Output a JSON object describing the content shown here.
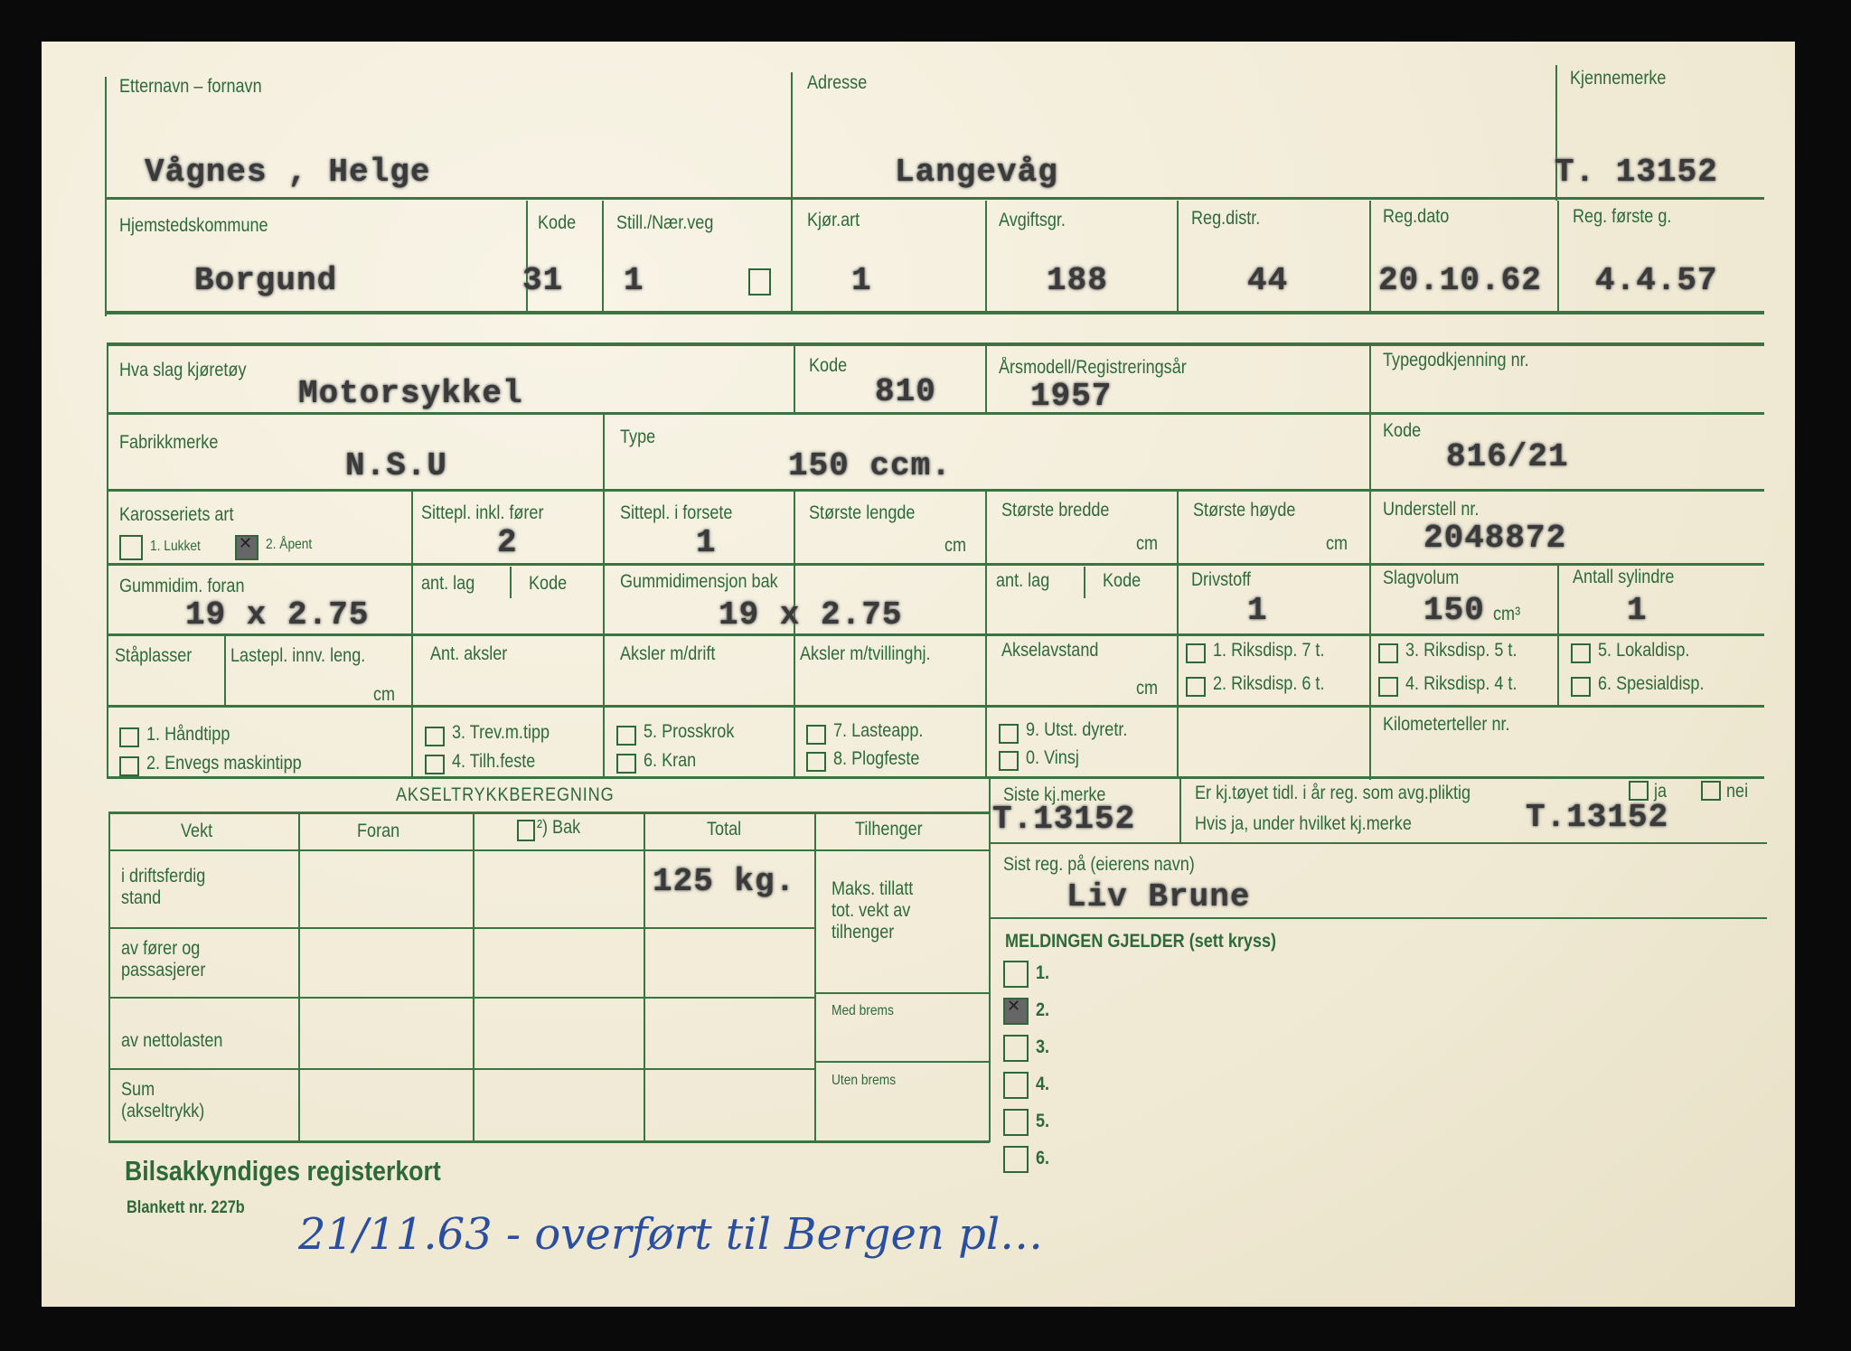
{
  "owner": {
    "name_label": "Etternavn – fornavn",
    "name": "Vågnes , Helge",
    "address_label": "Adresse",
    "address": "Langevåg",
    "plate_label": "Kjennemerke",
    "plate": "T. 13152"
  },
  "registration": {
    "municipality_label": "Hjemstedskommune",
    "municipality": "Borgund",
    "code_label": "Kode",
    "code": "31",
    "still_label": "Still./Nær.veg",
    "still": "1",
    "kjorart_label": "Kjør.art",
    "kjorart": "1",
    "avgift_label": "Avgiftsgr.",
    "avgift": "188",
    "regdistr_label": "Reg.distr.",
    "regdistr": "44",
    "regdato_label": "Reg.dato",
    "regdato": "20.10.62",
    "forste_label": "Reg. første g.",
    "forste": "4.4.57"
  },
  "vehicle": {
    "kind_label": "Hva slag kjøretøy",
    "kind": "Motorsykkel",
    "kind_code_label": "Kode",
    "kind_code": "810",
    "year_label": "Årsmodell/Registreringsår",
    "year": "1957",
    "type_approval_label": "Typegodkjenning nr.",
    "make_label": "Fabrikkmerke",
    "make": "N.S.U",
    "type_label": "Type",
    "type": "150 ccm.",
    "type_code_label": "Kode",
    "type_code": "816/21",
    "body_label": "Karosseriets art",
    "body_opt1": "1. Lukket",
    "body_opt2": "2. Åpent",
    "body_opt1_checked": false,
    "body_opt2_checked": true,
    "seats_label": "Sittepl. inkl. fører",
    "seats": "2",
    "front_seats_label": "Sittepl. i forsete",
    "front_seats": "1",
    "length_label": "Største lengde",
    "width_label": "Største bredde",
    "height_label": "Største høyde",
    "cm": "cm",
    "chassis_label": "Understell nr.",
    "chassis": "2048872",
    "tire_front_label": "Gummidim. foran",
    "tire_front": "19 x 2.75",
    "layers_label": "ant. lag",
    "tcode_label": "Kode",
    "tire_rear_label": "Gummidimensjon bak",
    "tire_rear": "19 x 2.75",
    "fuel_label": "Drivstoff",
    "fuel": "1",
    "displacement_label": "Slagvolum",
    "displacement": "150",
    "displacement_unit": "cm³",
    "cylinders_label": "Antall sylindre",
    "cylinders": "1",
    "standing_label": "Ståplasser",
    "cargo_label": "Lastepl. innv. leng.",
    "axles_label": "Ant. aksler",
    "driven_axles_label": "Aksler m/drift",
    "twin_axles_label": "Aksler m/tvillinghj.",
    "wheelbase_label": "Akselavstand",
    "riksdisp": [
      "1. Riksdisp. 7 t.",
      "2. Riksdisp. 6 t.",
      "3. Riksdisp. 5 t.",
      "4. Riksdisp. 4 t.",
      "5. Lokaldisp.",
      "6. Spesialdisp."
    ],
    "equipment": [
      "1. Håndtipp",
      "2. Envegs maskintipp",
      "3. Trev.m.tipp",
      "4. Tilh.feste",
      "5. Prosskrok",
      "6. Kran",
      "7. Lasteapp.",
      "8. Plogfeste",
      "9. Utst. dyretr.",
      "0. Vinsj"
    ],
    "odometer_label": "Kilometerteller nr."
  },
  "axle_load": {
    "title": "AKSELTRYKKBEREGNING",
    "headers": [
      "Vekt",
      "Foran",
      "²) Bak",
      "Total",
      "Tilhenger"
    ],
    "rows": [
      "i driftsferdig stand",
      "av fører og passasjerer",
      "av nettolasten",
      "Sum (akseltrykk)"
    ],
    "total_value": "125 kg.",
    "trailer_labels": [
      "Maks. tillatt tot. vekt av tilhenger",
      "Med brems",
      "Uten brems"
    ]
  },
  "previous": {
    "last_plate_label": "Siste kj.merke",
    "last_plate": "T.13152",
    "question": "Er kj.tøyet tidl. i år reg. som avg.pliktig",
    "ja": "ja",
    "nei": "nei",
    "which_plate_label": "Hvis ja, under hvilket kj.merke",
    "which_plate": "T.13152",
    "owner_label": "Sist reg. på (eierens navn)",
    "owner": "Liv Brune"
  },
  "message": {
    "label": "MELDINGEN GJELDER (sett kryss)",
    "options": [
      "1.",
      "2.",
      "3.",
      "4.",
      "5.",
      "6."
    ],
    "checked_index": 1
  },
  "footer": {
    "title": "Bilsakkyndiges registerkort",
    "form_no": "Blankett nr. 227b",
    "handwritten_note": "21/11.63 - overført til Bergen pl…"
  }
}
